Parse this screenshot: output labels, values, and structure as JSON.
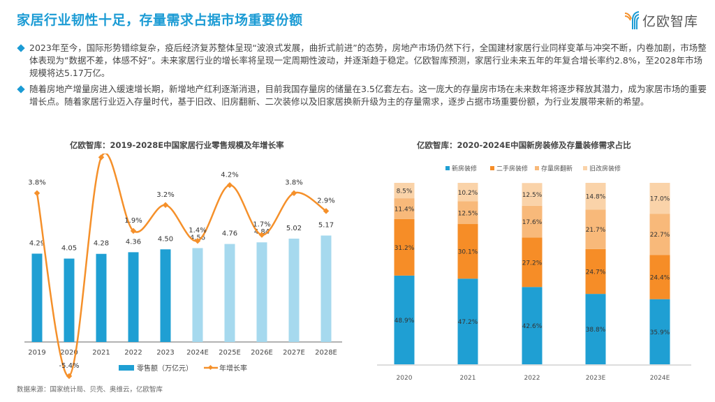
{
  "header": {
    "title": "家居行业韧性十足，存量需求占据市场重要份额",
    "logo_text": "亿欧智库",
    "logo_icon": "yiou-y-logo-icon"
  },
  "bullets": [
    "2023年至今，国际形势错综复杂，疫后经济复苏整体呈现“波浪式发展，曲折式前进”的态势，房地产市场仍然下行，全国建材家居行业同样变革与冲突不断，内卷加剧，市场整体表现为“数据不差，体感不好”。未来家居行业的增长率将呈现一定周期性波动，并逐渐趋于稳定。亿欧智库预测，家居行业未来五年的年复合增长率约2.8%，至2028年市场规模将达5.17万亿。",
    "随着房地产增量房进入缓速增长期，新增地产红利逐渐消退，目前我国存量房的储量在3.5亿套左右。这一庞大的存量房市场在未来数年将逐步释放其潜力，成为家居市场的重要增长点。随着家居行业迈入存量时代，基于旧改、旧房翻新、二次装修以及旧家居换新升级为主的存量需求，逐步占据市场重要份额，为行业发展带来新的希望。"
  ],
  "source": "数据来源：国家统计局、贝壳、奥维云，亿欧智库",
  "colors": {
    "accent": "#1b9bd4",
    "bar_actual": "#1f9fd3",
    "bar_forecast": "#a6d9ee",
    "line": "#f5902a",
    "new_house": "#1f9fd3",
    "second_hand": "#f68d27",
    "stock_renovation": "#f8b97a",
    "old_renovation": "#fad3a9"
  },
  "chart_data": [
    {
      "type": "bar",
      "title": "亿欧智库：2019-2028E中国家居行业零售规模及年增长率",
      "categories": [
        "2019",
        "2020",
        "2021",
        "2022",
        "2023",
        "2024E",
        "2025E",
        "2026E",
        "2027E",
        "2028E"
      ],
      "series": [
        {
          "name": "零售额（万亿元）",
          "type": "bar",
          "values": [
            4.29,
            4.05,
            4.28,
            4.36,
            4.5,
            4.56,
            4.76,
            4.84,
            5.02,
            5.17
          ],
          "labels": [
            "4.29",
            "4.05",
            "4.28",
            "4.36",
            "4.50",
            "4.56",
            "4.76",
            "4.84",
            "5.02",
            "5.17"
          ]
        },
        {
          "name": "年增长率",
          "type": "line",
          "values": [
            3.8,
            -5.4,
            5.6,
            1.9,
            3.2,
            1.4,
            4.2,
            1.7,
            3.8,
            2.9
          ],
          "labels": [
            "3.8%",
            "-5.4%",
            "5.6%",
            "1.9%",
            "3.2%",
            "1.4%",
            "4.2%",
            "1.7%",
            "3.8%",
            "2.9%"
          ]
        }
      ],
      "forecast_from_index": 5,
      "xlabel": "",
      "ylabel": "",
      "ylim_bar": [
        0,
        6.5
      ],
      "ylim_line": [
        -8,
        8
      ],
      "grid": false,
      "legend_position": "bottom"
    },
    {
      "type": "bar",
      "stacked": true,
      "title": "亿欧智库：2020-2024E中国新房装修及存量装修需求占比",
      "categories": [
        "2020",
        "2021",
        "2022",
        "2023E",
        "2024E"
      ],
      "series": [
        {
          "name": "新房装修",
          "values": [
            48.9,
            47.2,
            42.6,
            38.8,
            35.9
          ]
        },
        {
          "name": "二手房装修",
          "values": [
            31.2,
            30.1,
            27.2,
            24.7,
            24.4
          ]
        },
        {
          "name": "存量房翻新",
          "values": [
            11.4,
            12.5,
            17.6,
            21.7,
            22.7
          ]
        },
        {
          "name": "旧改房装修",
          "values": [
            8.5,
            10.2,
            12.5,
            14.8,
            17.0
          ]
        }
      ],
      "ylim": [
        0,
        100
      ],
      "unit": "%",
      "grid": false,
      "legend_position": "top"
    }
  ]
}
